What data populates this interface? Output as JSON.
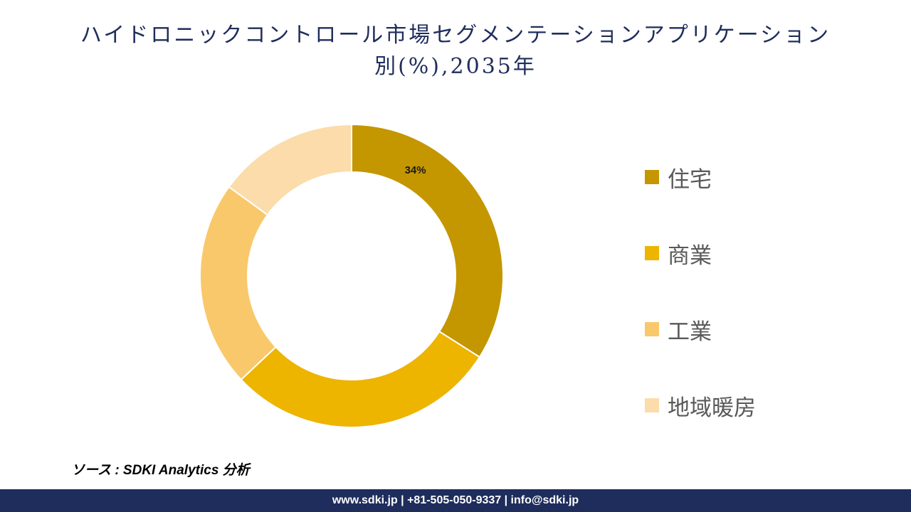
{
  "chart_data": {
    "type": "pie",
    "title_line1": "ハイドロニックコントロール市場セグメンテーションアプリケーション",
    "title_line2": "別(%),2035年",
    "categories": [
      "住宅",
      "商業",
      "工業",
      "地域暖房"
    ],
    "values": [
      34,
      29,
      22,
      15
    ],
    "colors": [
      "#c49600",
      "#edb400",
      "#f9c86a",
      "#fbdcaa"
    ],
    "data_labels": [
      "34%",
      "",
      "",
      ""
    ],
    "legend_position": "right"
  },
  "source_text": "ソース : SDKI Analytics 分析",
  "footer_text": "www.sdki.jp | +81-505-050-9337 | info@sdki.jp"
}
